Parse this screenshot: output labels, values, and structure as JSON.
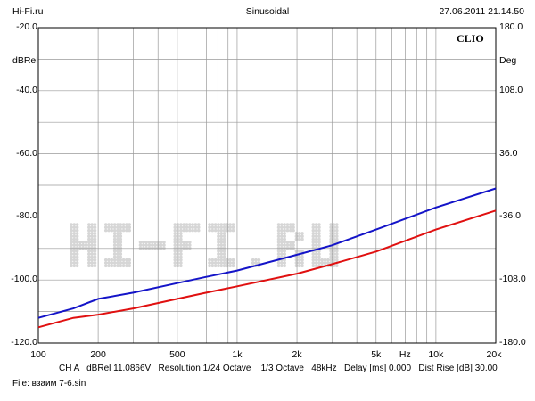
{
  "header": {
    "site": "Hi-Fi.ru",
    "mode": "Sinusoidal",
    "datetime": "27.06.2011 21.14.50"
  },
  "brand": "CLIO",
  "axes": {
    "left_unit": "dBRel",
    "right_unit": "Deg",
    "left_ticks": [
      "-20.0",
      "-40.0",
      "-60.0",
      "-80.0",
      "-100.0",
      "-120.0"
    ],
    "right_ticks": [
      "180.0",
      "108.0",
      "36.0",
      "-36.0",
      "-108.0",
      "-180.0"
    ],
    "x_ticks": [
      "100",
      "200",
      "500",
      "1k",
      "2k",
      "5k",
      "Hz",
      "10k",
      "20k"
    ]
  },
  "footer": {
    "settings": "CH A   dBRel 11.0866V   Resolution 1/24 Octave    1/3 Octave   48kHz   Delay [ms] 0.000   Dist Rise [dB] 30.00",
    "file": "File: взаим 7-6.sin"
  },
  "chart_data": {
    "type": "line",
    "xscale": "log",
    "xlim": [
      100,
      20000
    ],
    "ylim": [
      -120,
      -20
    ],
    "y2lim": [
      -180,
      180
    ],
    "grid": true,
    "watermark": "Hi-Fi.ru",
    "series": [
      {
        "color": "#1414c8",
        "x": [
          100,
          150,
          200,
          300,
          500,
          700,
          1000,
          2000,
          3000,
          5000,
          10000,
          20000
        ],
        "y": [
          -112,
          -109,
          -106,
          -104,
          -101,
          -99,
          -97,
          -92,
          -89,
          -84,
          -77,
          -71
        ]
      },
      {
        "color": "#e01010",
        "x": [
          100,
          150,
          200,
          300,
          500,
          700,
          1000,
          2000,
          3000,
          5000,
          10000,
          20000
        ],
        "y": [
          -115,
          -112,
          -111,
          -109,
          -106,
          -104,
          -102,
          -98,
          -95,
          -91,
          -84,
          -78
        ]
      }
    ]
  }
}
